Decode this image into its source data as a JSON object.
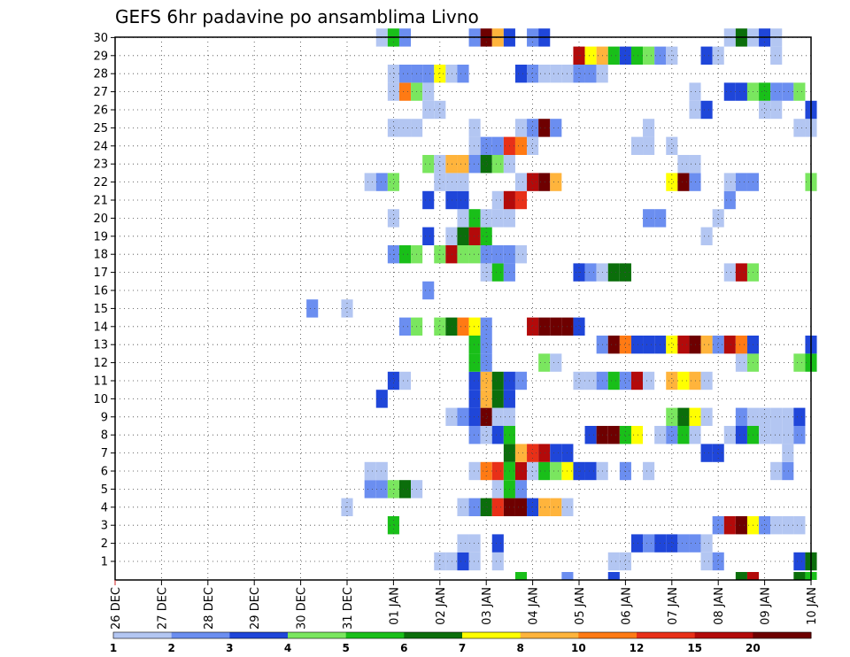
{
  "chart_data": {
    "type": "heatmap",
    "title": "GEFS 6hr padavine po ansamblima Livno",
    "y_ticks": [
      "1",
      "2",
      "3",
      "4",
      "5",
      "6",
      "7",
      "8",
      "9",
      "10",
      "11",
      "12",
      "13",
      "14",
      "15",
      "16",
      "17",
      "18",
      "19",
      "20",
      "21",
      "22",
      "23",
      "24",
      "25",
      "26",
      "27",
      "28",
      "29",
      "30"
    ],
    "x_ticks": [
      "26 DEC",
      "27 DEC",
      "28 DEC",
      "29 DEC",
      "30 DEC",
      "31 DEC",
      "01 JAN",
      "02 JAN",
      "03 JAN",
      "04 JAN",
      "05 JAN",
      "06 JAN",
      "07 JAN",
      "08 JAN",
      "09 JAN",
      "10 JAN"
    ],
    "grid": true,
    "colorbar": {
      "ticks": [
        "1",
        "2",
        "3",
        "4",
        "5",
        "6",
        "7",
        "8",
        "10",
        "12",
        "15",
        "20"
      ],
      "colors": [
        "#b3c6f2",
        "#6b8ef0",
        "#1f46d9",
        "#7ae65f",
        "#19bf19",
        "#0b6e0b",
        "#ffff00",
        "#ffb43c",
        "#ff7a14",
        "#e83018",
        "#b30a0a",
        "#6e0000"
      ]
    },
    "cells": [
      [
        1,
        7.0,
        1
      ],
      [
        1,
        7.25,
        1
      ],
      [
        1,
        7.5,
        3
      ],
      [
        1,
        7.75,
        1
      ],
      [
        1,
        8.25,
        1
      ],
      [
        1,
        10.75,
        1
      ],
      [
        1,
        11.0,
        1
      ],
      [
        1,
        12.75,
        1
      ],
      [
        1,
        13.0,
        2
      ],
      [
        1,
        14.75,
        3
      ],
      [
        1,
        15.0,
        6
      ],
      [
        2,
        7.5,
        1
      ],
      [
        2,
        7.75,
        1
      ],
      [
        2,
        8.25,
        3
      ],
      [
        2,
        11.25,
        3
      ],
      [
        2,
        11.5,
        2
      ],
      [
        2,
        11.75,
        3
      ],
      [
        2,
        12.0,
        3
      ],
      [
        2,
        12.25,
        2
      ],
      [
        2,
        12.5,
        2
      ],
      [
        2,
        12.75,
        1
      ],
      [
        3,
        6.0,
        5
      ],
      [
        3,
        13.0,
        2
      ],
      [
        3,
        13.25,
        11
      ],
      [
        3,
        13.5,
        12
      ],
      [
        3,
        13.75,
        7
      ],
      [
        3,
        14.0,
        2
      ],
      [
        3,
        14.25,
        1
      ],
      [
        3,
        14.5,
        1
      ],
      [
        3,
        14.75,
        1
      ],
      [
        4,
        5.0,
        1
      ],
      [
        4,
        7.5,
        1
      ],
      [
        4,
        7.75,
        2
      ],
      [
        4,
        8.0,
        6
      ],
      [
        4,
        8.25,
        10
      ],
      [
        4,
        8.5,
        12
      ],
      [
        4,
        8.75,
        12
      ],
      [
        4,
        9.0,
        3
      ],
      [
        4,
        9.25,
        8
      ],
      [
        4,
        9.5,
        8
      ],
      [
        4,
        9.75,
        1
      ],
      [
        5,
        5.5,
        2
      ],
      [
        5,
        5.75,
        2
      ],
      [
        5,
        6.0,
        4
      ],
      [
        5,
        6.25,
        6
      ],
      [
        5,
        6.5,
        1
      ],
      [
        5,
        8.25,
        1
      ],
      [
        5,
        8.5,
        5
      ],
      [
        5,
        8.75,
        2
      ],
      [
        6,
        5.5,
        1
      ],
      [
        6,
        5.75,
        1
      ],
      [
        6,
        7.75,
        1
      ],
      [
        6,
        8.0,
        9
      ],
      [
        6,
        8.25,
        10
      ],
      [
        6,
        8.5,
        5
      ],
      [
        6,
        8.75,
        11
      ],
      [
        6,
        9.0,
        1
      ],
      [
        6,
        9.25,
        5
      ],
      [
        6,
        9.5,
        4
      ],
      [
        6,
        9.75,
        7
      ],
      [
        6,
        10.0,
        3
      ],
      [
        6,
        10.25,
        3
      ],
      [
        6,
        10.5,
        1
      ],
      [
        6,
        11.0,
        2
      ],
      [
        6,
        11.5,
        1
      ],
      [
        6,
        14.25,
        1
      ],
      [
        6,
        14.5,
        2
      ],
      [
        7,
        8.5,
        6
      ],
      [
        7,
        8.75,
        8
      ],
      [
        7,
        9.0,
        10
      ],
      [
        7,
        9.25,
        11
      ],
      [
        7,
        9.5,
        3
      ],
      [
        7,
        9.75,
        3
      ],
      [
        7,
        12.75,
        3
      ],
      [
        7,
        13.0,
        3
      ],
      [
        7,
        14.5,
        1
      ],
      [
        8,
        7.75,
        2
      ],
      [
        8,
        8.0,
        1
      ],
      [
        8,
        8.25,
        3
      ],
      [
        8,
        8.5,
        5
      ],
      [
        8,
        10.25,
        3
      ],
      [
        8,
        10.5,
        12
      ],
      [
        8,
        10.75,
        12
      ],
      [
        8,
        11.0,
        5
      ],
      [
        8,
        11.25,
        7
      ],
      [
        8,
        11.75,
        1
      ],
      [
        8,
        12.0,
        2
      ],
      [
        8,
        12.25,
        5
      ],
      [
        8,
        12.5,
        1
      ],
      [
        8,
        13.25,
        1
      ],
      [
        8,
        13.5,
        3
      ],
      [
        8,
        13.75,
        5
      ],
      [
        8,
        14.0,
        1
      ],
      [
        8,
        14.25,
        1
      ],
      [
        8,
        14.5,
        1
      ],
      [
        8,
        14.75,
        2
      ],
      [
        9,
        7.25,
        1
      ],
      [
        9,
        7.5,
        2
      ],
      [
        9,
        7.75,
        3
      ],
      [
        9,
        8.0,
        12
      ],
      [
        9,
        8.25,
        1
      ],
      [
        9,
        8.5,
        1
      ],
      [
        9,
        12.0,
        4
      ],
      [
        9,
        12.25,
        6
      ],
      [
        9,
        12.5,
        7
      ],
      [
        9,
        12.75,
        1
      ],
      [
        9,
        13.5,
        2
      ],
      [
        9,
        13.75,
        1
      ],
      [
        9,
        14.0,
        1
      ],
      [
        9,
        14.25,
        1
      ],
      [
        9,
        14.5,
        1
      ],
      [
        9,
        14.75,
        3
      ],
      [
        10,
        5.75,
        3
      ],
      [
        10,
        7.75,
        3
      ],
      [
        10,
        8.0,
        8
      ],
      [
        10,
        8.25,
        6
      ],
      [
        10,
        8.5,
        3
      ],
      [
        11,
        6.0,
        3
      ],
      [
        11,
        6.25,
        1
      ],
      [
        11,
        7.75,
        3
      ],
      [
        11,
        8.0,
        8
      ],
      [
        11,
        8.25,
        6
      ],
      [
        11,
        8.5,
        3
      ],
      [
        11,
        8.75,
        2
      ],
      [
        11,
        10.0,
        1
      ],
      [
        11,
        10.25,
        1
      ],
      [
        11,
        10.5,
        2
      ],
      [
        11,
        10.75,
        5
      ],
      [
        11,
        11.0,
        2
      ],
      [
        11,
        11.25,
        11
      ],
      [
        11,
        11.5,
        1
      ],
      [
        11,
        12.0,
        8
      ],
      [
        11,
        12.25,
        7
      ],
      [
        11,
        12.5,
        8
      ],
      [
        11,
        12.75,
        1
      ],
      [
        12,
        7.75,
        5
      ],
      [
        12,
        8.0,
        2
      ],
      [
        12,
        9.25,
        4
      ],
      [
        12,
        9.5,
        1
      ],
      [
        12,
        13.5,
        1
      ],
      [
        12,
        13.75,
        4
      ],
      [
        12,
        14.75,
        4
      ],
      [
        12,
        15.0,
        5
      ],
      [
        13,
        7.75,
        5
      ],
      [
        13,
        8.0,
        2
      ],
      [
        13,
        10.5,
        2
      ],
      [
        13,
        10.75,
        12
      ],
      [
        13,
        11.0,
        9
      ],
      [
        13,
        11.25,
        3
      ],
      [
        13,
        11.5,
        3
      ],
      [
        13,
        11.75,
        3
      ],
      [
        13,
        12.0,
        7
      ],
      [
        13,
        12.25,
        11
      ],
      [
        13,
        12.5,
        12
      ],
      [
        13,
        12.75,
        8
      ],
      [
        13,
        13.0,
        2
      ],
      [
        13,
        13.25,
        11
      ],
      [
        13,
        13.5,
        9
      ],
      [
        13,
        13.75,
        3
      ],
      [
        13,
        15.0,
        3
      ],
      [
        14,
        6.25,
        2
      ],
      [
        14,
        6.5,
        4
      ],
      [
        14,
        7.0,
        4
      ],
      [
        14,
        7.25,
        6
      ],
      [
        14,
        7.5,
        9
      ],
      [
        14,
        7.75,
        7
      ],
      [
        14,
        8.0,
        2
      ],
      [
        14,
        9.0,
        11
      ],
      [
        14,
        9.25,
        12
      ],
      [
        14,
        9.5,
        12
      ],
      [
        14,
        9.75,
        12
      ],
      [
        14,
        10.0,
        3
      ],
      [
        15,
        4.25,
        2
      ],
      [
        15,
        5.0,
        1
      ],
      [
        16,
        6.75,
        2
      ],
      [
        17,
        8.0,
        1
      ],
      [
        17,
        8.25,
        5
      ],
      [
        17,
        8.5,
        2
      ],
      [
        17,
        10.0,
        3
      ],
      [
        17,
        10.25,
        2
      ],
      [
        17,
        10.5,
        1
      ],
      [
        17,
        10.75,
        6
      ],
      [
        17,
        11.0,
        6
      ],
      [
        17,
        13.25,
        1
      ],
      [
        17,
        13.5,
        11
      ],
      [
        17,
        13.75,
        4
      ],
      [
        18,
        6.0,
        2
      ],
      [
        18,
        6.25,
        5
      ],
      [
        18,
        6.5,
        4
      ],
      [
        18,
        7.0,
        4
      ],
      [
        18,
        7.25,
        11
      ],
      [
        18,
        7.5,
        4
      ],
      [
        18,
        7.75,
        4
      ],
      [
        18,
        8.0,
        2
      ],
      [
        18,
        8.25,
        2
      ],
      [
        18,
        8.5,
        2
      ],
      [
        18,
        8.75,
        1
      ],
      [
        19,
        6.75,
        3
      ],
      [
        19,
        7.25,
        1
      ],
      [
        19,
        7.5,
        6
      ],
      [
        19,
        7.75,
        11
      ],
      [
        19,
        8.0,
        5
      ],
      [
        19,
        12.75,
        1
      ],
      [
        20,
        6.0,
        1
      ],
      [
        20,
        7.5,
        1
      ],
      [
        20,
        7.75,
        5
      ],
      [
        20,
        8.0,
        1
      ],
      [
        20,
        8.25,
        1
      ],
      [
        20,
        8.5,
        1
      ],
      [
        20,
        11.5,
        2
      ],
      [
        20,
        11.75,
        2
      ],
      [
        20,
        13.0,
        1
      ],
      [
        21,
        6.75,
        3
      ],
      [
        21,
        7.25,
        3
      ],
      [
        21,
        7.5,
        3
      ],
      [
        21,
        8.25,
        1
      ],
      [
        21,
        8.5,
        11
      ],
      [
        21,
        8.75,
        10
      ],
      [
        21,
        13.25,
        2
      ],
      [
        22,
        5.5,
        1
      ],
      [
        22,
        5.75,
        2
      ],
      [
        22,
        6.0,
        4
      ],
      [
        22,
        7.0,
        1
      ],
      [
        22,
        7.25,
        1
      ],
      [
        22,
        7.5,
        1
      ],
      [
        22,
        8.75,
        1
      ],
      [
        22,
        9.0,
        11
      ],
      [
        22,
        9.25,
        12
      ],
      [
        22,
        9.5,
        8
      ],
      [
        22,
        12.0,
        7
      ],
      [
        22,
        12.25,
        12
      ],
      [
        22,
        12.5,
        2
      ],
      [
        22,
        13.25,
        1
      ],
      [
        22,
        13.5,
        2
      ],
      [
        22,
        13.75,
        2
      ],
      [
        22,
        15.0,
        4
      ],
      [
        23,
        6.75,
        4
      ],
      [
        23,
        7.0,
        1
      ],
      [
        23,
        7.25,
        8
      ],
      [
        23,
        7.5,
        8
      ],
      [
        23,
        7.75,
        2
      ],
      [
        23,
        8.0,
        6
      ],
      [
        23,
        8.25,
        4
      ],
      [
        23,
        8.5,
        1
      ],
      [
        23,
        12.25,
        1
      ],
      [
        23,
        12.5,
        1
      ],
      [
        24,
        7.75,
        1
      ],
      [
        24,
        8.0,
        2
      ],
      [
        24,
        8.25,
        2
      ],
      [
        24,
        8.5,
        10
      ],
      [
        24,
        8.75,
        9
      ],
      [
        24,
        9.0,
        1
      ],
      [
        24,
        11.25,
        1
      ],
      [
        24,
        11.5,
        1
      ],
      [
        24,
        12.0,
        1
      ],
      [
        25,
        6.0,
        1
      ],
      [
        25,
        6.25,
        1
      ],
      [
        25,
        6.5,
        1
      ],
      [
        25,
        7.75,
        1
      ],
      [
        25,
        8.75,
        1
      ],
      [
        25,
        9.0,
        2
      ],
      [
        25,
        9.25,
        12
      ],
      [
        25,
        9.5,
        2
      ],
      [
        25,
        11.5,
        1
      ],
      [
        25,
        14.75,
        1
      ],
      [
        25,
        15.0,
        1
      ],
      [
        26,
        6.75,
        1
      ],
      [
        26,
        7.0,
        1
      ],
      [
        26,
        12.5,
        1
      ],
      [
        26,
        12.75,
        3
      ],
      [
        26,
        14.0,
        1
      ],
      [
        26,
        14.25,
        1
      ],
      [
        26,
        15.0,
        3
      ],
      [
        27,
        6.0,
        1
      ],
      [
        27,
        6.25,
        9
      ],
      [
        27,
        6.5,
        4
      ],
      [
        27,
        6.75,
        1
      ],
      [
        27,
        12.5,
        1
      ],
      [
        27,
        13.25,
        3
      ],
      [
        27,
        13.5,
        3
      ],
      [
        27,
        13.75,
        4
      ],
      [
        27,
        14.0,
        5
      ],
      [
        27,
        14.25,
        2
      ],
      [
        27,
        14.5,
        2
      ],
      [
        27,
        14.75,
        4
      ],
      [
        28,
        6.0,
        1
      ],
      [
        28,
        6.25,
        2
      ],
      [
        28,
        6.5,
        2
      ],
      [
        28,
        6.75,
        2
      ],
      [
        28,
        7.0,
        7
      ],
      [
        28,
        7.25,
        1
      ],
      [
        28,
        7.5,
        2
      ],
      [
        28,
        8.75,
        3
      ],
      [
        28,
        9.0,
        2
      ],
      [
        28,
        9.25,
        1
      ],
      [
        28,
        9.5,
        1
      ],
      [
        28,
        9.75,
        1
      ],
      [
        28,
        10.0,
        2
      ],
      [
        28,
        10.25,
        2
      ],
      [
        28,
        10.5,
        1
      ],
      [
        29,
        10.0,
        11
      ],
      [
        29,
        10.25,
        7
      ],
      [
        29,
        10.5,
        8
      ],
      [
        29,
        10.75,
        5
      ],
      [
        29,
        11.0,
        3
      ],
      [
        29,
        11.25,
        5
      ],
      [
        29,
        11.5,
        4
      ],
      [
        29,
        11.75,
        2
      ],
      [
        29,
        12.0,
        1
      ],
      [
        29,
        12.75,
        3
      ],
      [
        29,
        13.0,
        1
      ],
      [
        29,
        14.25,
        1
      ],
      [
        30,
        5.75,
        1
      ],
      [
        30,
        6.0,
        5
      ],
      [
        30,
        6.25,
        2
      ],
      [
        30,
        7.75,
        2
      ],
      [
        30,
        8.0,
        12
      ],
      [
        30,
        8.25,
        8
      ],
      [
        30,
        8.5,
        3
      ],
      [
        30,
        9.0,
        2
      ],
      [
        30,
        9.25,
        3
      ],
      [
        30,
        13.25,
        1
      ],
      [
        30,
        13.5,
        6
      ],
      [
        30,
        13.75,
        1
      ],
      [
        30,
        14.0,
        3
      ],
      [
        30,
        14.25,
        1
      ],
      [
        0,
        8.75,
        5
      ],
      [
        0,
        9.75,
        2
      ],
      [
        0,
        10.75,
        3
      ],
      [
        0,
        13.5,
        6
      ],
      [
        0,
        13.75,
        11
      ],
      [
        0,
        14.75,
        6
      ],
      [
        0,
        15.0,
        5
      ]
    ]
  }
}
